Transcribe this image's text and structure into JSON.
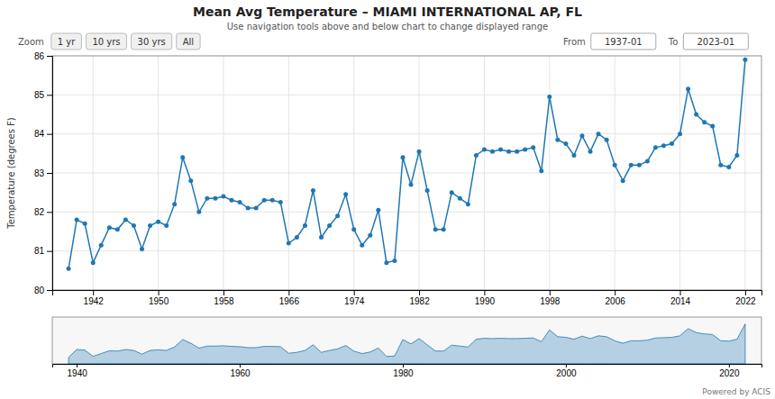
{
  "chart_data": [
    {
      "type": "line",
      "title": "Mean Avg Temperature – MIAMI INTERNATIONAL AP, FL",
      "subtitle": "Use navigation tools above and below chart to change displayed range",
      "y_label": "Temperature (degrees F)",
      "annotations": [
        "Zoom",
        "1 yr",
        "10 yrs",
        "30 yrs",
        "All",
        "From",
        "1937-01",
        "To",
        "2023-01",
        "Powered by ACIS"
      ],
      "x": [
        1939,
        1940,
        1941,
        1942,
        1943,
        1944,
        1945,
        1946,
        1947,
        1948,
        1949,
        1950,
        1951,
        1952,
        1953,
        1954,
        1955,
        1956,
        1957,
        1958,
        1959,
        1960,
        1961,
        1962,
        1963,
        1964,
        1965,
        1966,
        1967,
        1968,
        1969,
        1970,
        1971,
        1972,
        1973,
        1974,
        1975,
        1976,
        1977,
        1978,
        1979,
        1980,
        1981,
        1982,
        1983,
        1984,
        1985,
        1986,
        1987,
        1988,
        1989,
        1990,
        1991,
        1992,
        1993,
        1994,
        1995,
        1996,
        1997,
        1998,
        1999,
        2000,
        2001,
        2002,
        2003,
        2004,
        2005,
        2006,
        2007,
        2008,
        2009,
        2010,
        2011,
        2012,
        2013,
        2014,
        2015,
        2016,
        2017,
        2018,
        2019,
        2020,
        2021,
        2022
      ],
      "values": [
        80.55,
        81.8,
        81.7,
        80.7,
        81.15,
        81.6,
        81.55,
        81.8,
        81.65,
        81.05,
        81.65,
        81.75,
        81.65,
        82.2,
        83.4,
        82.8,
        82.0,
        82.35,
        82.35,
        82.4,
        82.3,
        82.25,
        82.1,
        82.1,
        82.3,
        82.3,
        82.25,
        81.2,
        81.35,
        81.65,
        82.55,
        81.35,
        81.65,
        81.9,
        82.45,
        81.55,
        81.15,
        81.4,
        82.05,
        80.7,
        80.75,
        83.4,
        82.7,
        83.55,
        82.55,
        81.55,
        81.55,
        82.5,
        82.35,
        82.2,
        83.45,
        83.6,
        83.55,
        83.6,
        83.55,
        83.55,
        83.6,
        83.65,
        83.05,
        84.95,
        83.85,
        83.75,
        83.45,
        83.95,
        83.55,
        84.0,
        83.85,
        83.2,
        82.8,
        83.2,
        83.2,
        83.3,
        83.65,
        83.7,
        83.75,
        84.0,
        85.15,
        84.5,
        84.3,
        84.2,
        83.2,
        83.15,
        83.45,
        85.9
      ],
      "marker": "circle",
      "xlim": [
        1937,
        2024
      ],
      "xticks": [
        1942,
        1950,
        1958,
        1966,
        1974,
        1982,
        1990,
        1998,
        2006,
        2014,
        2022
      ],
      "ylim": [
        80,
        86
      ],
      "yticks": [
        80,
        81,
        82,
        83,
        84,
        85,
        86
      ],
      "grid": true
    },
    {
      "type": "area",
      "x": [
        1939,
        1940,
        1941,
        1942,
        1943,
        1944,
        1945,
        1946,
        1947,
        1948,
        1949,
        1950,
        1951,
        1952,
        1953,
        1954,
        1955,
        1956,
        1957,
        1958,
        1959,
        1960,
        1961,
        1962,
        1963,
        1964,
        1965,
        1966,
        1967,
        1968,
        1969,
        1970,
        1971,
        1972,
        1973,
        1974,
        1975,
        1976,
        1977,
        1978,
        1979,
        1980,
        1981,
        1982,
        1983,
        1984,
        1985,
        1986,
        1987,
        1988,
        1989,
        1990,
        1991,
        1992,
        1993,
        1994,
        1995,
        1996,
        1997,
        1998,
        1999,
        2000,
        2001,
        2002,
        2003,
        2004,
        2005,
        2006,
        2007,
        2008,
        2009,
        2010,
        2011,
        2012,
        2013,
        2014,
        2015,
        2016,
        2017,
        2018,
        2019,
        2020,
        2021,
        2022
      ],
      "values": [
        80.55,
        81.8,
        81.7,
        80.7,
        81.15,
        81.6,
        81.55,
        81.8,
        81.65,
        81.05,
        81.65,
        81.75,
        81.65,
        82.2,
        83.4,
        82.8,
        82.0,
        82.35,
        82.35,
        82.4,
        82.3,
        82.25,
        82.1,
        82.1,
        82.3,
        82.3,
        82.25,
        81.2,
        81.35,
        81.65,
        82.55,
        81.35,
        81.65,
        81.9,
        82.45,
        81.55,
        81.15,
        81.4,
        82.05,
        80.7,
        80.75,
        83.4,
        82.7,
        83.55,
        82.55,
        81.55,
        81.55,
        82.5,
        82.35,
        82.2,
        83.45,
        83.6,
        83.55,
        83.6,
        83.55,
        83.55,
        83.6,
        83.65,
        83.05,
        84.95,
        83.85,
        83.75,
        83.45,
        83.95,
        83.55,
        84.0,
        83.85,
        83.2,
        82.8,
        83.2,
        83.2,
        83.3,
        83.65,
        83.7,
        83.75,
        84.0,
        85.15,
        84.5,
        84.3,
        84.2,
        83.2,
        83.15,
        83.45,
        85.9
      ],
      "xlim": [
        1937,
        2024
      ],
      "xticks": [
        1940,
        1960,
        1980,
        2000,
        2020
      ],
      "ylim": [
        79.5,
        87
      ],
      "tick_labels": "x"
    }
  ]
}
